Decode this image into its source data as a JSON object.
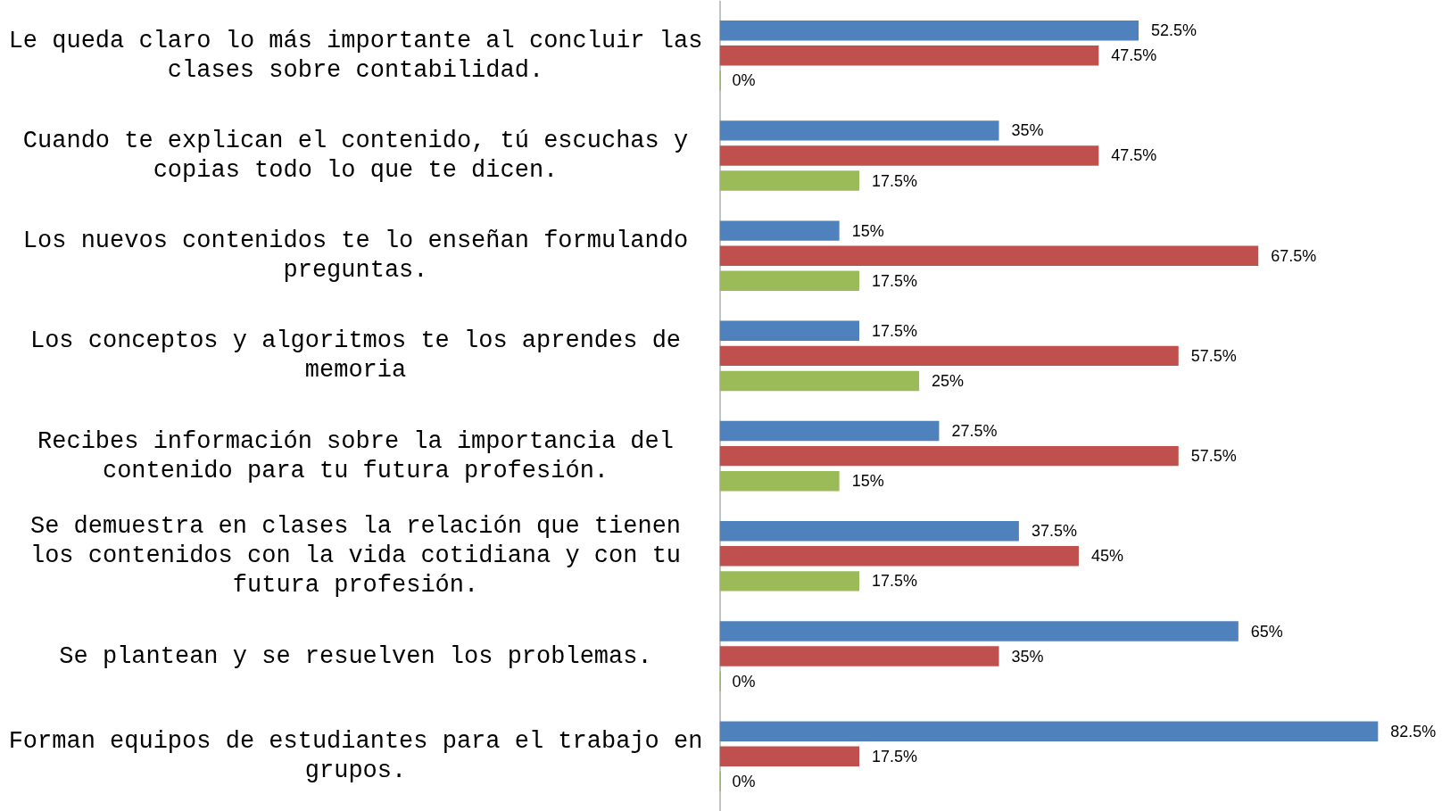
{
  "chart_data": {
    "type": "bar",
    "orientation": "horizontal",
    "categories": [
      "Le queda claro lo más importante al concluir las clases sobre contabilidad.",
      "Cuando te explican el contenido, tú escuchas y copias todo lo que te dicen.",
      "Los nuevos contenidos te lo enseñan formulando preguntas.",
      "Los conceptos y algoritmos te los aprendes de memoria",
      "Recibes información sobre la importancia del contenido para tu futura profesión.",
      "Se demuestra en clases la relación que tienen los contenidos con la vida cotidiana y con tu futura profesión.",
      "Se plantean y se resuelven los problemas.",
      "Forman equipos de estudiantes para el trabajo en grupos."
    ],
    "series": [
      {
        "color": "#4f81bd",
        "values": [
          52.5,
          35,
          15,
          17.5,
          27.5,
          37.5,
          65,
          82.5
        ],
        "value_labels": [
          "52.5%",
          "35%",
          "15%",
          "17.5%",
          "27.5%",
          "37.5%",
          "65%",
          "82.5%"
        ]
      },
      {
        "color": "#c0504d",
        "values": [
          47.5,
          47.5,
          67.5,
          57.5,
          57.5,
          45,
          35,
          17.5
        ],
        "value_labels": [
          "47.5%",
          "47.5%",
          "67.5%",
          "57.5%",
          "57.5%",
          "45%",
          "35%",
          "17.5%"
        ]
      },
      {
        "color": "#9bbb59",
        "values": [
          0,
          17.5,
          17.5,
          25,
          15,
          17.5,
          0,
          0
        ],
        "value_labels": [
          "0%",
          "17.5%",
          "17.5%",
          "25%",
          "15%",
          "17.5%",
          "0%",
          "0%"
        ]
      }
    ]
  }
}
